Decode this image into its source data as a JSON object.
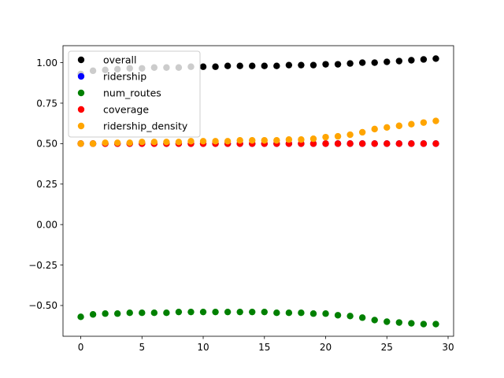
{
  "chart_data": {
    "type": "scatter",
    "title": "",
    "xlabel": "",
    "ylabel": "",
    "xlim": [
      -1.45,
      30.45
    ],
    "ylim": [
      -0.69,
      1.105
    ],
    "xticks": [
      0,
      5,
      10,
      15,
      20,
      25,
      30
    ],
    "yticks": [
      -0.5,
      -0.25,
      0.0,
      0.25,
      0.5,
      0.75,
      1.0
    ],
    "xtick_labels": [
      "0",
      "5",
      "10",
      "15",
      "20",
      "25",
      "30"
    ],
    "ytick_labels": [
      "−0.50",
      "−0.25",
      "0.00",
      "0.25",
      "0.50",
      "0.75",
      "1.00"
    ],
    "grid": false,
    "legend_position": "top-left",
    "x": [
      0,
      1,
      2,
      3,
      4,
      5,
      6,
      7,
      8,
      9,
      10,
      11,
      12,
      13,
      14,
      15,
      16,
      17,
      18,
      19,
      20,
      21,
      22,
      23,
      24,
      25,
      26,
      27,
      28,
      29
    ],
    "series": [
      {
        "name": "overall",
        "color": "#000000",
        "values": [
          0.93,
          0.95,
          0.955,
          0.96,
          0.965,
          0.965,
          0.97,
          0.97,
          0.97,
          0.975,
          0.975,
          0.975,
          0.98,
          0.98,
          0.98,
          0.98,
          0.98,
          0.985,
          0.985,
          0.985,
          0.99,
          0.99,
          0.995,
          1.0,
          1.0,
          1.005,
          1.01,
          1.015,
          1.02,
          1.025
        ]
      },
      {
        "name": "ridership",
        "color": "#0000ff",
        "values": [
          0.5,
          0.5,
          0.5,
          0.5,
          0.5,
          0.5,
          0.5,
          0.5,
          0.5,
          0.5,
          0.5,
          0.5,
          0.5,
          0.5,
          0.5,
          0.5,
          0.5,
          0.5,
          0.5,
          0.5,
          0.5,
          0.5,
          0.5,
          0.5,
          0.5,
          0.5,
          0.5,
          0.5,
          0.5,
          0.5
        ]
      },
      {
        "name": "num_routes",
        "color": "#008000",
        "values": [
          -0.57,
          -0.555,
          -0.55,
          -0.55,
          -0.545,
          -0.545,
          -0.545,
          -0.545,
          -0.54,
          -0.54,
          -0.54,
          -0.54,
          -0.54,
          -0.54,
          -0.54,
          -0.54,
          -0.545,
          -0.545,
          -0.545,
          -0.55,
          -0.55,
          -0.56,
          -0.565,
          -0.575,
          -0.59,
          -0.6,
          -0.605,
          -0.61,
          -0.615,
          -0.615
        ]
      },
      {
        "name": "coverage",
        "color": "#ff0000",
        "values": [
          0.5,
          0.5,
          0.5,
          0.5,
          0.5,
          0.5,
          0.5,
          0.5,
          0.5,
          0.5,
          0.5,
          0.5,
          0.5,
          0.5,
          0.5,
          0.5,
          0.5,
          0.5,
          0.5,
          0.5,
          0.5,
          0.5,
          0.5,
          0.5,
          0.5,
          0.5,
          0.5,
          0.5,
          0.5,
          0.5
        ]
      },
      {
        "name": "ridership_density",
        "color": "#ffa500",
        "values": [
          0.5,
          0.5,
          0.505,
          0.505,
          0.505,
          0.51,
          0.51,
          0.51,
          0.51,
          0.515,
          0.515,
          0.515,
          0.515,
          0.52,
          0.52,
          0.52,
          0.52,
          0.525,
          0.525,
          0.53,
          0.54,
          0.545,
          0.555,
          0.57,
          0.59,
          0.6,
          0.61,
          0.62,
          0.63,
          0.64
        ]
      }
    ]
  }
}
